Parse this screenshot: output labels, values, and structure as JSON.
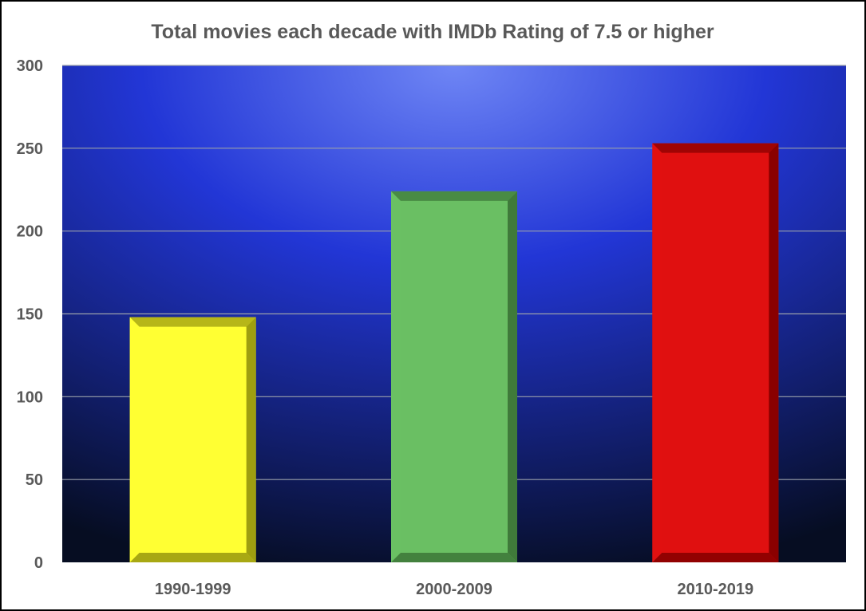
{
  "chart_data": {
    "type": "bar",
    "title": "Total movies each decade with IMDb Rating of 7.5 or higher",
    "xlabel": "",
    "ylabel": "",
    "categories": [
      "1990-1999",
      "2000-2009",
      "2010-2019"
    ],
    "values": [
      148,
      224,
      253
    ],
    "ylim": [
      0,
      300
    ],
    "yticks": [
      "0",
      "50",
      "100",
      "150",
      "200",
      "250",
      "300"
    ],
    "grid": true,
    "legend": "none",
    "colors": {
      "bars": [
        "#ffff33",
        "#6abf63",
        "#e01010"
      ],
      "bar_side_shades": [
        "#9e9e10",
        "#3f7a3a",
        "#8a0000"
      ],
      "plot_background_light": "#6f86f5",
      "plot_background_mid": "#2236d6",
      "plot_background_dark": "#060d22",
      "gridline": "#9aa0aa",
      "text": "#595959"
    }
  }
}
